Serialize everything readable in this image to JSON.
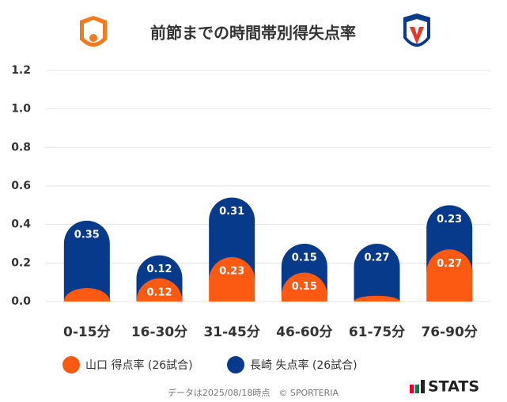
{
  "chart_data": {
    "type": "stacked-bar",
    "title": "前節までの時間帯別得失点率",
    "categories": [
      "0-15分",
      "16-30分",
      "31-45分",
      "46-60分",
      "61-75分",
      "76-90分"
    ],
    "series": [
      {
        "name": "山口 得点率 (26試合)",
        "color": "#fc5a12",
        "values": [
          0.07,
          0.12,
          0.23,
          0.15,
          0.03,
          0.27
        ],
        "value_labels": [
          null,
          "0.12",
          "0.23",
          "0.15",
          null,
          "0.27"
        ]
      },
      {
        "name": "長崎 失点率 (26試合)",
        "color": "#083a8c",
        "values": [
          0.35,
          0.12,
          0.31,
          0.15,
          0.27,
          0.23
        ],
        "value_labels": [
          "0.35",
          "0.12",
          "0.31",
          "0.15",
          "0.27",
          "0.23"
        ]
      }
    ],
    "ylim": [
      0,
      1.2
    ],
    "yticks": [
      {
        "value": 0,
        "label": "0.0"
      },
      0.2,
      0.4,
      0.6,
      0.8,
      {
        "value": 1,
        "label": "1.0"
      },
      1.2
    ],
    "grid": true
  },
  "footer": {
    "note": "データは2025/08/18時点　© SPORTERIA",
    "logo": "STATS"
  }
}
